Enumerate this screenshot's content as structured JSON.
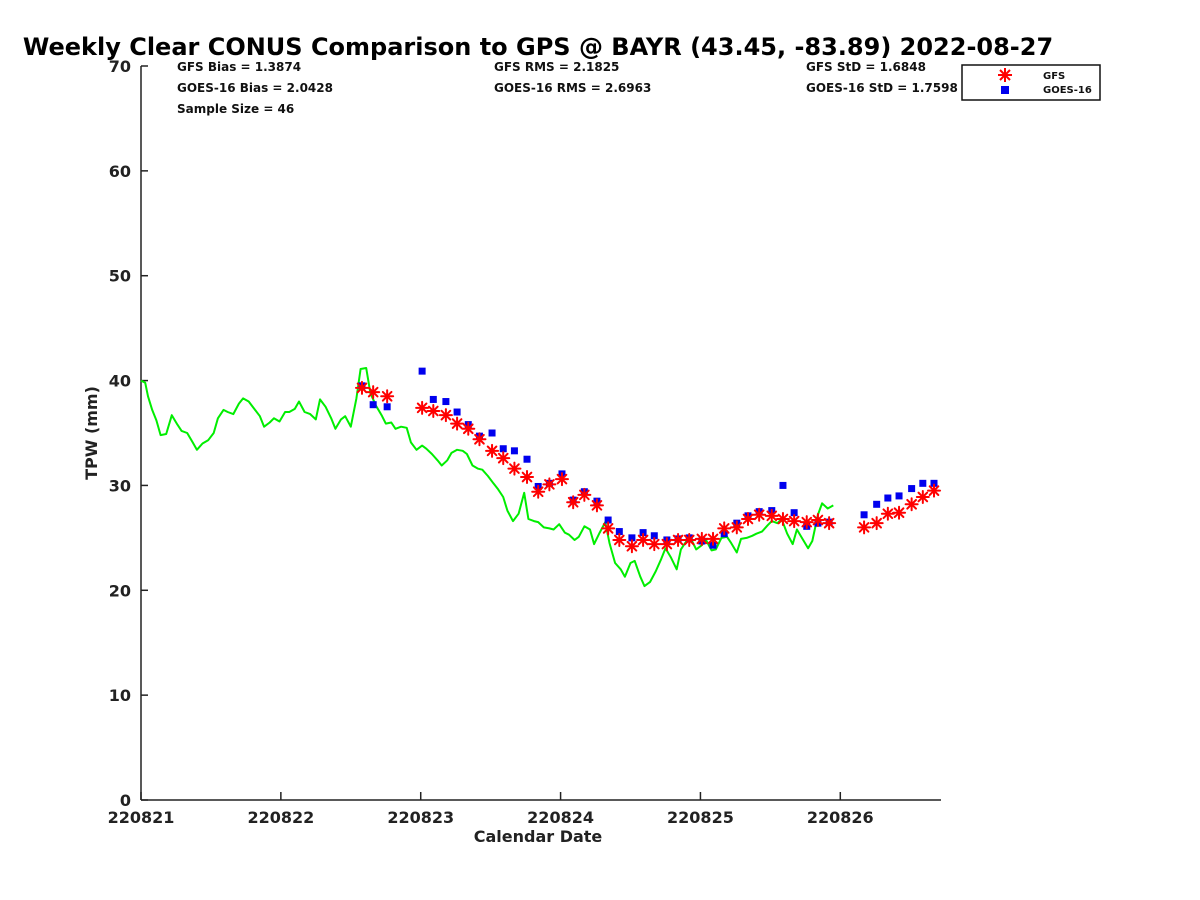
{
  "stats": {
    "gfs_bias": "GFS Bias = 1.3874",
    "goes_bias": "GOES-16 Bias = 2.0428",
    "sample_size": "Sample Size = 46",
    "gfs_rms": "GFS RMS = 2.1825",
    "goes_rms": "GOES-16 RMS = 2.6963",
    "gfs_std": "GFS StD = 1.6848",
    "goes_std": "GOES-16 StD = 1.7598"
  },
  "colors": {
    "gps": "#00ee00",
    "gfs": "#ff0000",
    "goes": "#0000ee",
    "axis": "#222222"
  },
  "chart_data": {
    "type": "scatter",
    "title": "Weekly Clear CONUS Comparison to GPS @ BAYR (43.45, -83.89) 2022-08-27",
    "xlabel": "Calendar Date",
    "ylabel": "TPW (mm)",
    "ylim": [
      0,
      70
    ],
    "yticks": [
      "0",
      "10",
      "20",
      "30",
      "40",
      "50",
      "60",
      "70"
    ],
    "xlim": [
      0,
      5.72
    ],
    "xticks": [
      {
        "v": 0,
        "label": "220821"
      },
      {
        "v": 1,
        "label": "220822"
      },
      {
        "v": 2,
        "label": "220823"
      },
      {
        "v": 3,
        "label": "220824"
      },
      {
        "v": 4,
        "label": "220825"
      },
      {
        "v": 5,
        "label": "220826"
      }
    ],
    "legend": {
      "position": "top-right",
      "entries": [
        "GFS",
        "GOES-16"
      ]
    },
    "series": [
      {
        "name": "GPS",
        "marker": "line",
        "points": [
          [
            0.0,
            40.0
          ],
          [
            0.03,
            39.8
          ],
          [
            0.05,
            38.5
          ],
          [
            0.08,
            37.2
          ],
          [
            0.11,
            36.2
          ],
          [
            0.14,
            34.8
          ],
          [
            0.18,
            34.9
          ],
          [
            0.22,
            36.7
          ],
          [
            0.26,
            35.8
          ],
          [
            0.29,
            35.2
          ],
          [
            0.33,
            35.0
          ],
          [
            0.37,
            34.1
          ],
          [
            0.4,
            33.4
          ],
          [
            0.44,
            34.0
          ],
          [
            0.48,
            34.3
          ],
          [
            0.52,
            35.0
          ],
          [
            0.55,
            36.4
          ],
          [
            0.59,
            37.2
          ],
          [
            0.62,
            37.0
          ],
          [
            0.66,
            36.8
          ],
          [
            0.7,
            37.8
          ],
          [
            0.73,
            38.3
          ],
          [
            0.77,
            38.0
          ],
          [
            0.81,
            37.3
          ],
          [
            0.85,
            36.6
          ],
          [
            0.88,
            35.6
          ],
          [
            0.92,
            36.0
          ],
          [
            0.95,
            36.4
          ],
          [
            0.99,
            36.1
          ],
          [
            1.03,
            37.0
          ],
          [
            1.06,
            37.0
          ],
          [
            1.1,
            37.3
          ],
          [
            1.13,
            38.0
          ],
          [
            1.17,
            37.0
          ],
          [
            1.21,
            36.8
          ],
          [
            1.25,
            36.3
          ],
          [
            1.28,
            38.2
          ],
          [
            1.32,
            37.5
          ],
          [
            1.36,
            36.4
          ],
          [
            1.39,
            35.4
          ],
          [
            1.43,
            36.3
          ],
          [
            1.46,
            36.6
          ],
          [
            1.5,
            35.6
          ],
          [
            1.54,
            38.3
          ],
          [
            1.57,
            41.1
          ],
          [
            1.61,
            41.2
          ],
          [
            1.64,
            38.8
          ],
          [
            1.68,
            37.6
          ],
          [
            1.72,
            36.7
          ],
          [
            1.75,
            35.9
          ],
          [
            1.79,
            36.0
          ],
          [
            1.82,
            35.4
          ],
          [
            1.86,
            35.6
          ],
          [
            1.9,
            35.5
          ],
          [
            1.93,
            34.1
          ],
          [
            1.97,
            33.4
          ],
          [
            2.01,
            33.8
          ],
          [
            2.04,
            33.5
          ],
          [
            2.08,
            33.0
          ],
          [
            2.12,
            32.4
          ],
          [
            2.15,
            31.9
          ],
          [
            2.19,
            32.4
          ],
          [
            2.22,
            33.1
          ],
          [
            2.26,
            33.4
          ],
          [
            2.3,
            33.3
          ],
          [
            2.33,
            33.0
          ],
          [
            2.37,
            31.9
          ],
          [
            2.41,
            31.6
          ],
          [
            2.44,
            31.5
          ],
          [
            2.48,
            30.9
          ],
          [
            2.52,
            30.2
          ],
          [
            2.55,
            29.7
          ],
          [
            2.59,
            28.9
          ],
          [
            2.62,
            27.6
          ],
          [
            2.66,
            26.6
          ],
          [
            2.7,
            27.3
          ],
          [
            2.74,
            29.3
          ],
          [
            2.77,
            26.8
          ],
          [
            2.81,
            26.6
          ],
          [
            2.84,
            26.5
          ],
          [
            2.88,
            26.0
          ],
          [
            2.92,
            25.9
          ],
          [
            2.95,
            25.8
          ],
          [
            2.99,
            26.3
          ],
          [
            3.03,
            25.5
          ],
          [
            3.06,
            25.3
          ],
          [
            3.1,
            24.8
          ],
          [
            3.13,
            25.1
          ],
          [
            3.17,
            26.1
          ],
          [
            3.21,
            25.8
          ],
          [
            3.24,
            24.4
          ],
          [
            3.28,
            25.5
          ],
          [
            3.32,
            26.5
          ],
          [
            3.35,
            24.5
          ],
          [
            3.39,
            22.6
          ],
          [
            3.43,
            22.0
          ],
          [
            3.46,
            21.3
          ],
          [
            3.5,
            22.6
          ],
          [
            3.53,
            22.8
          ],
          [
            3.57,
            21.3
          ],
          [
            3.6,
            20.4
          ],
          [
            3.64,
            20.8
          ],
          [
            3.68,
            21.8
          ],
          [
            3.72,
            23.0
          ],
          [
            3.75,
            24.0
          ],
          [
            3.79,
            23.1
          ],
          [
            3.83,
            22.0
          ],
          [
            3.86,
            23.9
          ],
          [
            3.9,
            24.7
          ],
          [
            3.94,
            24.7
          ],
          [
            3.97,
            23.9
          ],
          [
            4.01,
            24.3
          ],
          [
            4.04,
            24.8
          ],
          [
            4.08,
            23.8
          ],
          [
            4.11,
            23.9
          ],
          [
            4.15,
            25.0
          ],
          [
            4.19,
            25.1
          ],
          [
            4.22,
            24.5
          ],
          [
            4.26,
            23.6
          ],
          [
            4.29,
            24.9
          ],
          [
            4.33,
            25.0
          ],
          [
            4.37,
            25.2
          ],
          [
            4.4,
            25.4
          ],
          [
            4.44,
            25.6
          ],
          [
            4.48,
            26.2
          ],
          [
            4.51,
            26.6
          ],
          [
            4.55,
            26.4
          ],
          [
            4.58,
            26.8
          ],
          [
            4.62,
            25.4
          ],
          [
            4.66,
            24.4
          ],
          [
            4.69,
            25.8
          ],
          [
            4.73,
            24.9
          ],
          [
            4.77,
            24.0
          ],
          [
            4.8,
            24.7
          ],
          [
            4.84,
            27.2
          ],
          [
            4.87,
            28.3
          ],
          [
            4.91,
            27.8
          ],
          [
            4.95,
            28.1
          ]
        ]
      },
      {
        "name": "GFS",
        "marker": "asterisk",
        "points": [
          [
            1.58,
            39.3
          ],
          [
            1.66,
            38.9
          ],
          [
            1.76,
            38.5
          ],
          [
            2.01,
            37.4
          ],
          [
            2.09,
            37.1
          ],
          [
            2.18,
            36.7
          ],
          [
            2.26,
            35.9
          ],
          [
            2.34,
            35.4
          ],
          [
            2.42,
            34.4
          ],
          [
            2.51,
            33.3
          ],
          [
            2.59,
            32.6
          ],
          [
            2.67,
            31.6
          ],
          [
            2.76,
            30.8
          ],
          [
            2.84,
            29.4
          ],
          [
            2.92,
            30.1
          ],
          [
            3.01,
            30.6
          ],
          [
            3.09,
            28.4
          ],
          [
            3.17,
            29.1
          ],
          [
            3.26,
            28.1
          ],
          [
            3.34,
            25.9
          ],
          [
            3.42,
            24.8
          ],
          [
            3.51,
            24.2
          ],
          [
            3.59,
            24.8
          ],
          [
            3.67,
            24.4
          ],
          [
            3.76,
            24.4
          ],
          [
            3.84,
            24.8
          ],
          [
            3.92,
            24.8
          ],
          [
            4.01,
            24.9
          ],
          [
            4.09,
            24.9
          ],
          [
            4.17,
            25.9
          ],
          [
            4.26,
            26.0
          ],
          [
            4.34,
            26.8
          ],
          [
            4.42,
            27.2
          ],
          [
            4.51,
            27.1
          ],
          [
            4.59,
            26.8
          ],
          [
            4.67,
            26.6
          ],
          [
            4.76,
            26.5
          ],
          [
            4.84,
            26.7
          ],
          [
            4.92,
            26.4
          ],
          [
            5.17,
            26.0
          ],
          [
            5.26,
            26.4
          ],
          [
            5.34,
            27.3
          ],
          [
            5.42,
            27.4
          ],
          [
            5.51,
            28.2
          ],
          [
            5.59,
            28.9
          ],
          [
            5.67,
            29.5
          ]
        ]
      },
      {
        "name": "GOES-16",
        "marker": "square",
        "points": [
          [
            1.58,
            39.5
          ],
          [
            1.66,
            37.7
          ],
          [
            1.76,
            37.5
          ],
          [
            2.01,
            40.9
          ],
          [
            2.09,
            38.2
          ],
          [
            2.18,
            38.0
          ],
          [
            2.26,
            37.0
          ],
          [
            2.34,
            35.8
          ],
          [
            2.42,
            34.7
          ],
          [
            2.51,
            35.0
          ],
          [
            2.59,
            33.5
          ],
          [
            2.67,
            33.3
          ],
          [
            2.76,
            32.5
          ],
          [
            2.84,
            29.9
          ],
          [
            2.92,
            30.2
          ],
          [
            3.01,
            31.1
          ],
          [
            3.09,
            28.6
          ],
          [
            3.17,
            29.4
          ],
          [
            3.26,
            28.5
          ],
          [
            3.34,
            26.7
          ],
          [
            3.42,
            25.6
          ],
          [
            3.51,
            25.0
          ],
          [
            3.59,
            25.5
          ],
          [
            3.67,
            25.2
          ],
          [
            3.76,
            24.8
          ],
          [
            3.84,
            24.9
          ],
          [
            3.92,
            25.0
          ],
          [
            4.01,
            24.7
          ],
          [
            4.09,
            24.3
          ],
          [
            4.17,
            25.4
          ],
          [
            4.26,
            26.4
          ],
          [
            4.34,
            27.1
          ],
          [
            4.42,
            27.5
          ],
          [
            4.51,
            27.6
          ],
          [
            4.59,
            30.0
          ],
          [
            4.67,
            27.4
          ],
          [
            4.76,
            26.1
          ],
          [
            4.84,
            26.4
          ],
          [
            4.92,
            26.5
          ],
          [
            5.17,
            27.2
          ],
          [
            5.26,
            28.2
          ],
          [
            5.34,
            28.8
          ],
          [
            5.42,
            29.0
          ],
          [
            5.51,
            29.7
          ],
          [
            5.59,
            30.2
          ],
          [
            5.67,
            30.2
          ]
        ]
      }
    ]
  }
}
